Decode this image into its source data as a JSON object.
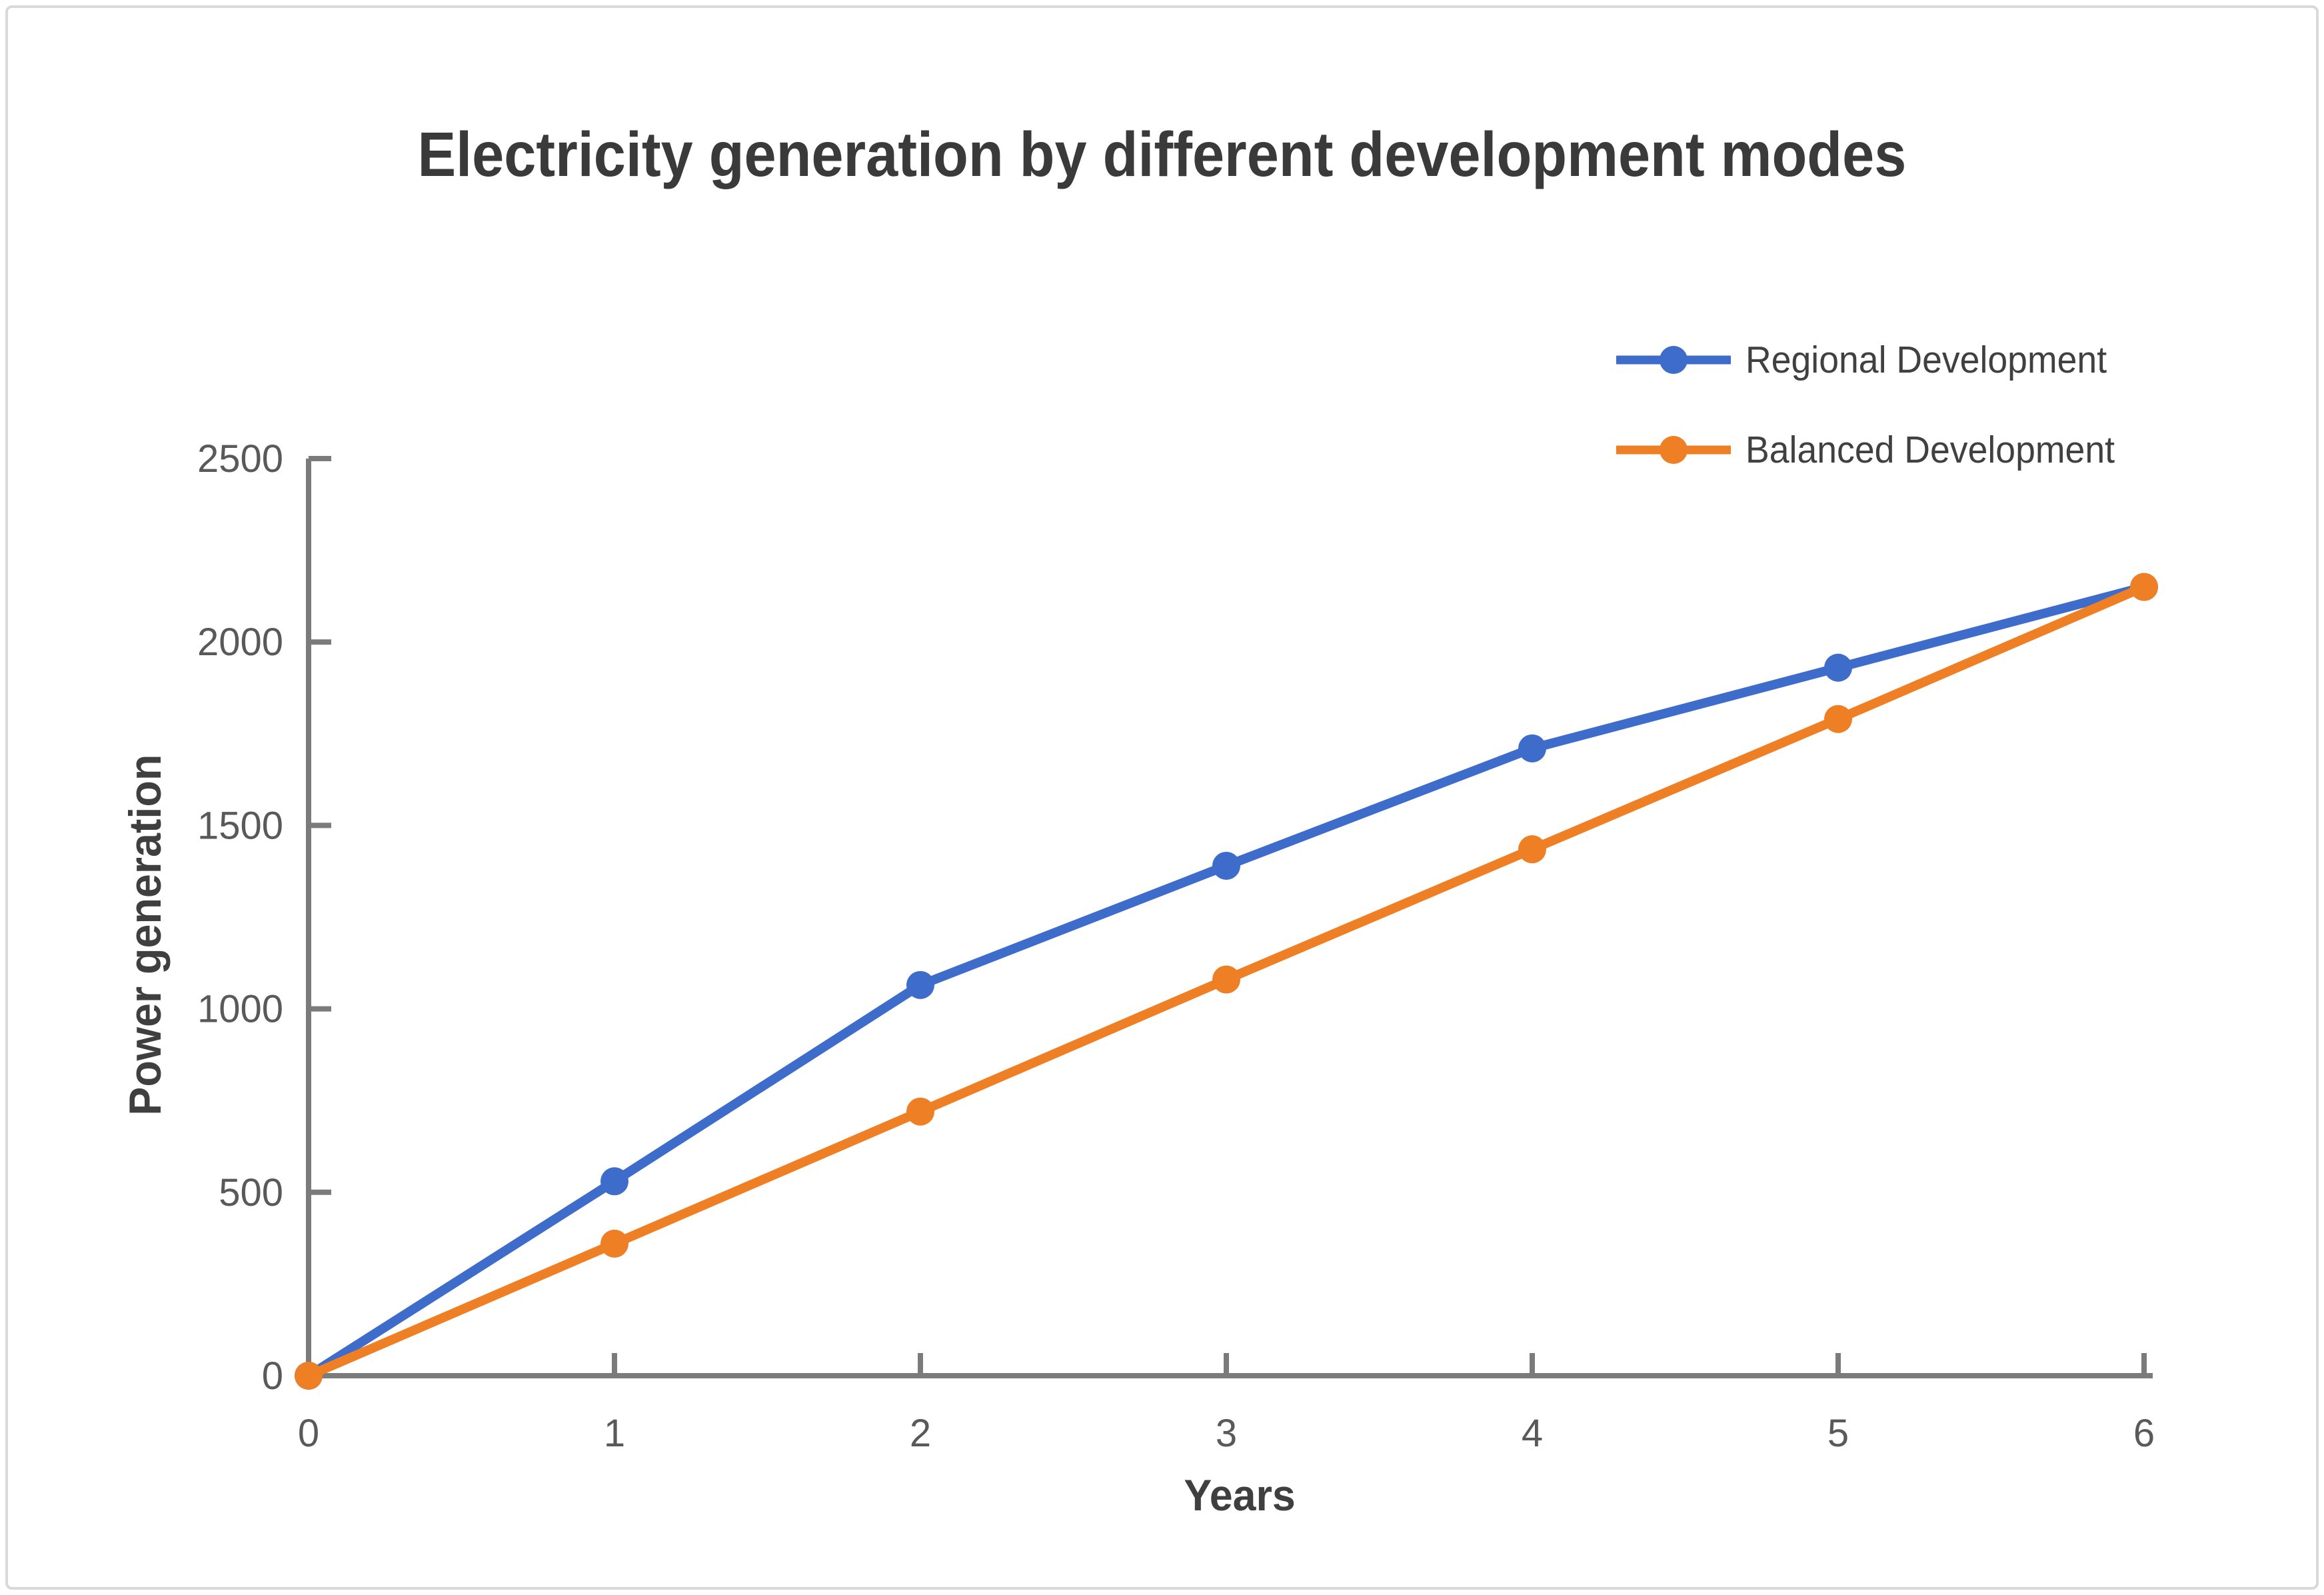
{
  "page": {
    "background_color": "#ffffff",
    "border_color": "#d9d9d9"
  },
  "chart_data": {
    "type": "line",
    "title": "Electricity generation by different development modes",
    "xlabel": "Years",
    "ylabel": "Power generation",
    "x": [
      0,
      1,
      2,
      3,
      4,
      5,
      6
    ],
    "x_tick_labels": [
      "0",
      "1",
      "2",
      "3",
      "4",
      "5",
      "6"
    ],
    "y_ticks": [
      0,
      500,
      1000,
      1500,
      2000,
      2500
    ],
    "xlim": [
      0,
      6
    ],
    "ylim": [
      0,
      2500
    ],
    "grid": false,
    "legend_position": "top-right",
    "series": [
      {
        "name": "Regional Development",
        "color": "#3d6ccb",
        "marker": "circle",
        "values": [
          0,
          530,
          1065,
          1390,
          1710,
          1930,
          2150
        ]
      },
      {
        "name": "Balanced Development",
        "color": "#ef7f25",
        "marker": "circle",
        "values": [
          0,
          360,
          720,
          1080,
          1435,
          1790,
          2150
        ]
      }
    ],
    "colors": {
      "title": "#3a3a3a",
      "axis_line": "#7b7b7b",
      "tick_label": "#595959",
      "axis_title": "#3f3f3f",
      "legend_text": "#404040"
    }
  }
}
